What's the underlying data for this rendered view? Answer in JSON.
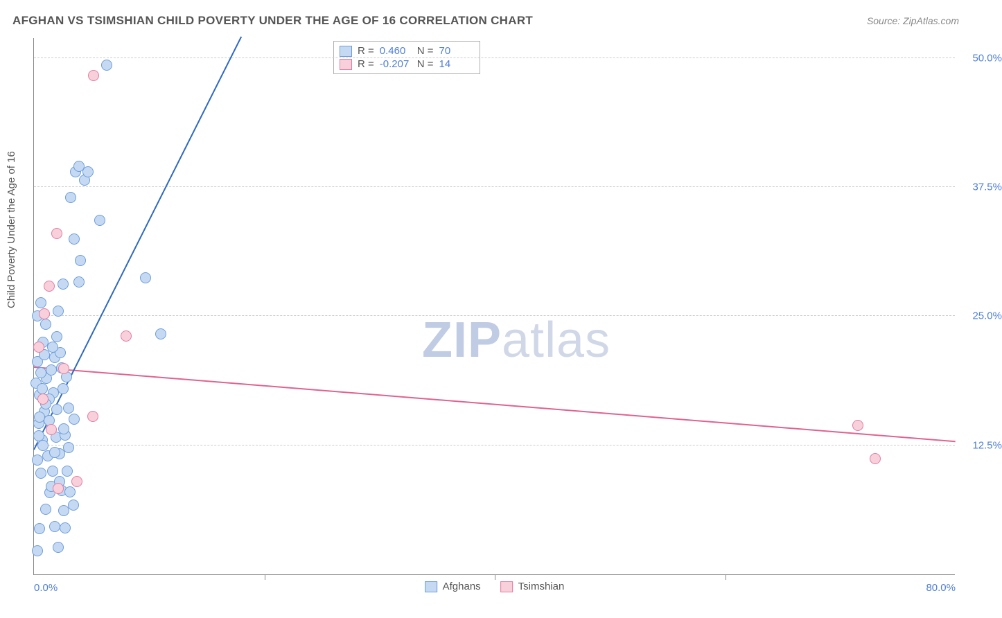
{
  "title": "AFGHAN VS TSIMSHIAN CHILD POVERTY UNDER THE AGE OF 16 CORRELATION CHART",
  "source": "Source: ZipAtlas.com",
  "y_axis_label": "Child Poverty Under the Age of 16",
  "watermark_bold": "ZIP",
  "watermark_light": "atlas",
  "chart": {
    "type": "scatter",
    "xlim": [
      0,
      80
    ],
    "ylim": [
      0,
      52
    ],
    "x_ticks": [
      0,
      20,
      40,
      60,
      80
    ],
    "x_tick_labels": [
      "0.0%",
      "",
      "",
      "",
      "80.0%"
    ],
    "y_gridlines": [
      12.5,
      25.0,
      37.5,
      50.0
    ],
    "y_tick_labels": [
      "12.5%",
      "25.0%",
      "37.5%",
      "50.0%"
    ],
    "grid_color": "#cccccc",
    "background_color": "#ffffff",
    "axis_color": "#888888",
    "tick_label_color": "#4f7fd6",
    "point_radius": 8,
    "point_border_width": 1.2
  },
  "series": [
    {
      "name": "Afghans",
      "fill": "#c5daf2",
      "stroke": "#6d9cdd",
      "r_value": "0.460",
      "n_value": "70",
      "trend": {
        "x1": 0,
        "y1": 12.0,
        "x2": 18,
        "y2": 52.0,
        "width": 2.2,
        "color": "#2d68c4"
      },
      "points": [
        [
          0.3,
          2.3
        ],
        [
          2.1,
          2.6
        ],
        [
          0.5,
          4.4
        ],
        [
          1.8,
          4.6
        ],
        [
          2.7,
          4.5
        ],
        [
          1.0,
          6.3
        ],
        [
          2.6,
          6.2
        ],
        [
          3.4,
          6.7
        ],
        [
          1.4,
          7.9
        ],
        [
          2.4,
          8.1
        ],
        [
          3.1,
          8.0
        ],
        [
          0.6,
          9.8
        ],
        [
          1.6,
          10.0
        ],
        [
          2.9,
          10.0
        ],
        [
          0.3,
          11.1
        ],
        [
          1.2,
          11.5
        ],
        [
          2.2,
          11.7
        ],
        [
          3.0,
          12.3
        ],
        [
          0.7,
          13.0
        ],
        [
          1.9,
          13.3
        ],
        [
          2.7,
          13.5
        ],
        [
          0.4,
          14.6
        ],
        [
          1.3,
          14.9
        ],
        [
          3.5,
          15.0
        ],
        [
          0.9,
          15.8
        ],
        [
          2.0,
          16.0
        ],
        [
          3.0,
          16.1
        ],
        [
          0.5,
          17.4
        ],
        [
          1.7,
          17.6
        ],
        [
          2.5,
          18.0
        ],
        [
          0.2,
          18.5
        ],
        [
          1.1,
          19.0
        ],
        [
          2.8,
          19.1
        ],
        [
          0.6,
          19.5
        ],
        [
          1.5,
          19.8
        ],
        [
          0.3,
          20.6
        ],
        [
          1.8,
          21.0
        ],
        [
          2.3,
          21.5
        ],
        [
          0.8,
          22.5
        ],
        [
          2.0,
          23.0
        ],
        [
          11.0,
          23.3
        ],
        [
          1.0,
          24.2
        ],
        [
          0.3,
          25.0
        ],
        [
          2.1,
          25.5
        ],
        [
          0.6,
          26.3
        ],
        [
          2.5,
          28.1
        ],
        [
          3.9,
          28.3
        ],
        [
          9.7,
          28.7
        ],
        [
          4.0,
          30.4
        ],
        [
          3.5,
          32.5
        ],
        [
          5.7,
          34.3
        ],
        [
          3.2,
          36.5
        ],
        [
          4.4,
          38.2
        ],
        [
          3.6,
          39.0
        ],
        [
          4.7,
          39.0
        ],
        [
          3.9,
          39.5
        ],
        [
          6.3,
          49.3
        ],
        [
          0.8,
          12.5
        ],
        [
          1.5,
          8.5
        ],
        [
          2.2,
          9.0
        ],
        [
          0.9,
          21.3
        ],
        [
          1.3,
          17.0
        ],
        [
          0.5,
          15.2
        ],
        [
          2.6,
          14.1
        ],
        [
          1.8,
          11.8
        ],
        [
          0.4,
          13.4
        ],
        [
          1.0,
          16.5
        ],
        [
          2.4,
          20.0
        ],
        [
          0.7,
          18.0
        ],
        [
          1.6,
          22.0
        ]
      ]
    },
    {
      "name": "Tsimshian",
      "fill": "#f7d0dc",
      "stroke": "#e47ba0",
      "r_value": "-0.207",
      "n_value": "14",
      "trend": {
        "x1": 0,
        "y1": 20.0,
        "x2": 80,
        "y2": 12.8,
        "width": 2.0,
        "color": "#e06290"
      },
      "points": [
        [
          2.1,
          8.3
        ],
        [
          3.7,
          9.0
        ],
        [
          1.5,
          14.0
        ],
        [
          5.1,
          15.3
        ],
        [
          0.8,
          17.0
        ],
        [
          2.6,
          19.9
        ],
        [
          0.4,
          22.0
        ],
        [
          8.0,
          23.1
        ],
        [
          0.9,
          25.2
        ],
        [
          1.3,
          27.9
        ],
        [
          2.0,
          33.0
        ],
        [
          5.2,
          48.3
        ],
        [
          71.5,
          14.4
        ],
        [
          73.0,
          11.2
        ]
      ]
    }
  ],
  "stats_legend": {
    "r_label": "R =",
    "n_label": "N ="
  },
  "bottom_legend": {
    "items": [
      "Afghans",
      "Tsimshian"
    ]
  }
}
